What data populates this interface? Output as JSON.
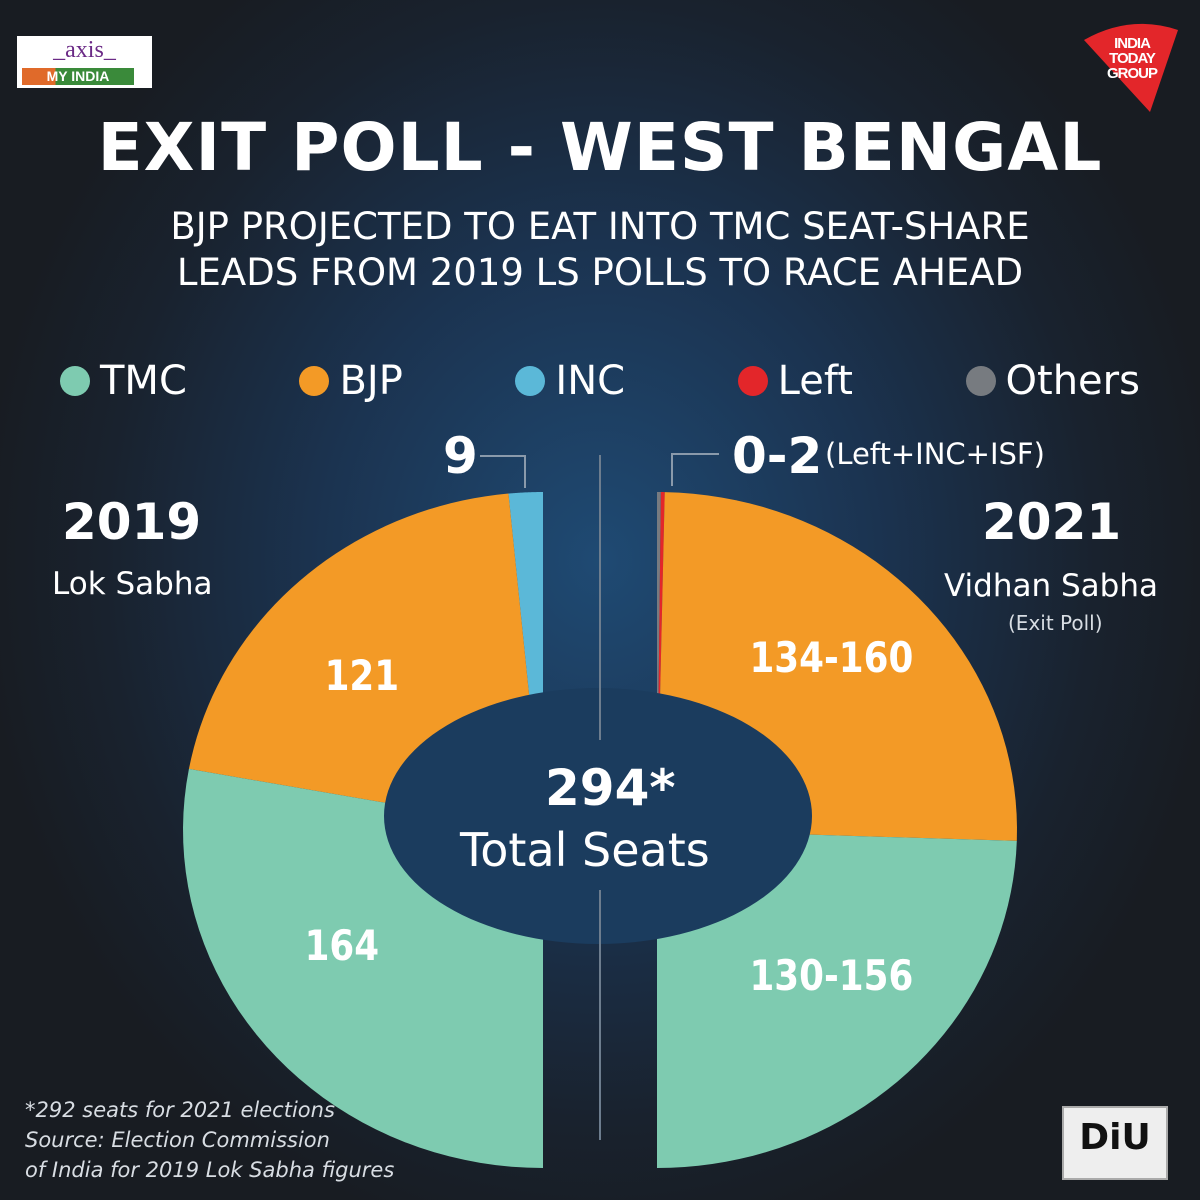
{
  "logos": {
    "axis_top": "axis",
    "axis_bottom": "MY INDIA",
    "india_today": "INDIA TODAY GROUP",
    "diu": "DiU"
  },
  "header": {
    "title": "EXIT POLL - WEST BENGAL",
    "subtitle_1": "BJP PROJECTED TO EAT INTO TMC SEAT-SHARE",
    "subtitle_2": "LEADS FROM 2019 LS POLLS TO RACE AHEAD"
  },
  "colors": {
    "TMC": "#7ecbb0",
    "BJP": "#f39a26",
    "INC": "#5bb8d8",
    "Left": "#e3262a",
    "Others": "#777b80"
  },
  "chart_data": {
    "type": "pie",
    "variant": "split half-donut",
    "legend": [
      "TMC",
      "BJP",
      "INC",
      "Left",
      "Others"
    ],
    "legend_position": "top",
    "center_label": {
      "value": "294*",
      "text": "Total Seats"
    },
    "charts": [
      {
        "year": "2019",
        "subtitle": "Lok Sabha",
        "side": "left",
        "slices": [
          {
            "name": "INC",
            "value": 9,
            "label": "9"
          },
          {
            "name": "BJP",
            "value": 121,
            "label": "121"
          },
          {
            "name": "TMC",
            "value": 164,
            "label": "164"
          }
        ]
      },
      {
        "year": "2021",
        "subtitle": "Vidhan Sabha",
        "note": "(Exit Poll)",
        "side": "right",
        "callout": {
          "value": "0-2",
          "text": "(Left+INC+ISF)"
        },
        "slices": [
          {
            "name": "Others",
            "value": 1,
            "label": ""
          },
          {
            "name": "Left",
            "value": 1,
            "label": ""
          },
          {
            "name": "BJP",
            "value": 147,
            "range": [
              134,
              160
            ],
            "label": "134-160"
          },
          {
            "name": "TMC",
            "value": 143,
            "range": [
              130,
              156
            ],
            "label": "130-156"
          }
        ]
      }
    ]
  },
  "footnote": {
    "line1": "*292 seats for 2021 elections",
    "line2": "Source: Election Commission",
    "line3": "of India for 2019 Lok Sabha figures"
  }
}
